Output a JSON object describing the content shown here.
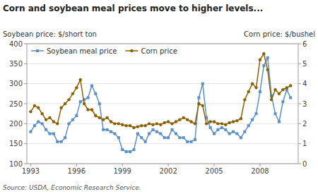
{
  "chart_data": {
    "type": "line",
    "title": "Corn and soybean meal prices move to higher levels...",
    "ylabel": "Soybean price: $/short ton",
    "y2label": "Corn price: $/bushel",
    "source": "Source: USDA, Economic Research Service.",
    "x": [
      1993.0,
      1993.25,
      1993.5,
      1993.75,
      1994.0,
      1994.25,
      1994.5,
      1994.75,
      1995.0,
      1995.25,
      1995.5,
      1995.75,
      1996.0,
      1996.25,
      1996.5,
      1996.75,
      1997.0,
      1997.25,
      1997.5,
      1997.75,
      1998.0,
      1998.25,
      1998.5,
      1998.75,
      1999.0,
      1999.25,
      1999.5,
      1999.75,
      2000.0,
      2000.25,
      2000.5,
      2000.75,
      2001.0,
      2001.25,
      2001.5,
      2001.75,
      2002.0,
      2002.25,
      2002.5,
      2002.75,
      2003.0,
      2003.25,
      2003.5,
      2003.75,
      2004.0,
      2004.25,
      2004.5,
      2004.75,
      2005.0,
      2005.25,
      2005.5,
      2005.75,
      2006.0,
      2006.25,
      2006.5,
      2006.75,
      2007.0,
      2007.25,
      2007.5,
      2007.75,
      2008.0,
      2008.25,
      2008.5,
      2008.75,
      2009.0,
      2009.25,
      2009.5,
      2009.75,
      2010.0
    ],
    "series": [
      {
        "name": "Soybean meal price",
        "color": "#5b8fc9",
        "marker": "square",
        "line_style": "solid",
        "values": [
          180,
          195,
          205,
          200,
          185,
          175,
          175,
          155,
          155,
          165,
          200,
          210,
          220,
          255,
          260,
          265,
          295,
          275,
          250,
          185,
          185,
          180,
          175,
          165,
          135,
          130,
          130,
          135,
          175,
          165,
          155,
          175,
          185,
          180,
          175,
          165,
          165,
          185,
          175,
          165,
          165,
          155,
          155,
          160,
          265,
          300,
          215,
          190,
          175,
          185,
          190,
          185,
          175,
          180,
          175,
          165,
          180,
          195,
          210,
          225,
          280,
          345,
          365,
          270,
          225,
          205,
          255,
          285,
          265
        ]
      },
      {
        "name": "Corn price",
        "color": "#8B6000",
        "marker": "circle",
        "line_style": "solid",
        "axis": "y2",
        "values": [
          2.6,
          2.9,
          2.8,
          2.5,
          2.2,
          2.3,
          2.1,
          2.0,
          2.8,
          3.0,
          3.2,
          3.5,
          3.8,
          4.2,
          3.0,
          2.7,
          2.7,
          2.4,
          2.3,
          2.2,
          2.3,
          2.1,
          2.0,
          2.0,
          1.95,
          1.9,
          1.9,
          1.8,
          1.85,
          1.9,
          1.9,
          2.0,
          1.95,
          2.0,
          1.95,
          2.05,
          2.1,
          2.0,
          2.1,
          2.2,
          2.3,
          2.2,
          2.1,
          2.0,
          3.0,
          2.9,
          2.0,
          2.1,
          2.1,
          2.0,
          2.0,
          1.95,
          2.05,
          2.1,
          2.15,
          2.25,
          3.2,
          3.6,
          4.0,
          3.8,
          5.2,
          5.5,
          4.7,
          3.2,
          3.7,
          3.5,
          3.7,
          3.8,
          3.9
        ]
      }
    ],
    "xlim": [
      1992.75,
      2010.5
    ],
    "xticks": [
      1993,
      1996,
      1999,
      2002,
      2005,
      2008
    ],
    "ylim": [
      100,
      400
    ],
    "yticks": [
      100,
      150,
      200,
      250,
      300,
      350,
      400
    ],
    "y2lim": [
      0,
      6
    ],
    "y2ticks": [
      0,
      1,
      2,
      3,
      4,
      5,
      6
    ],
    "grid": true,
    "legend": "upper left"
  }
}
